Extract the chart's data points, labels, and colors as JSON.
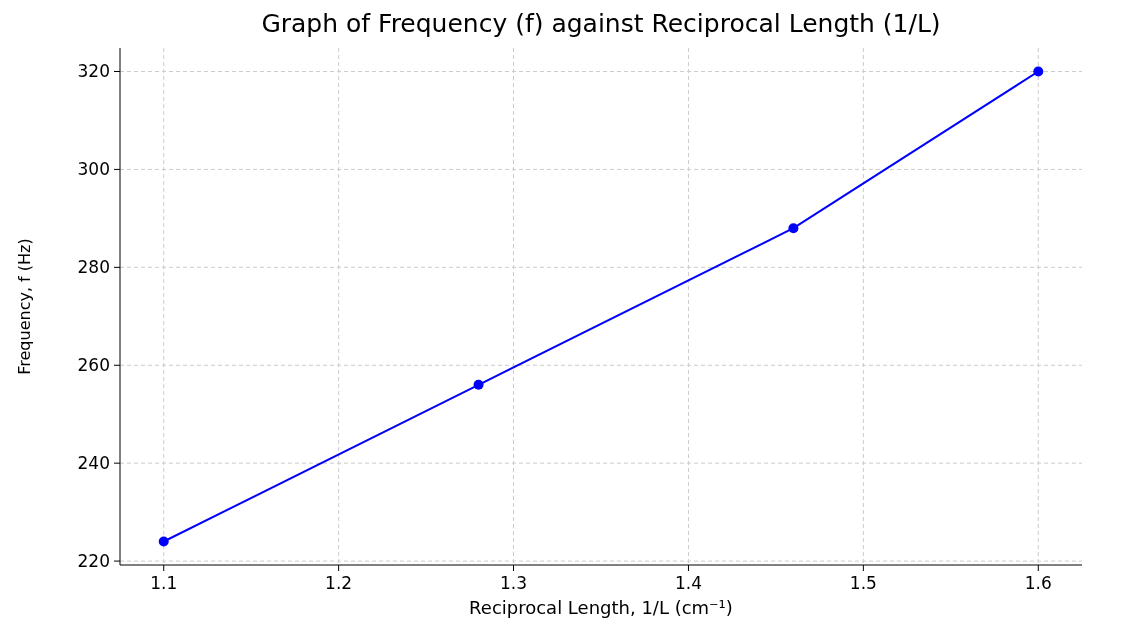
{
  "chart_data": {
    "type": "line",
    "title": "Graph of Frequency (f) against Reciprocal Length (1/L)",
    "xlabel": "Reciprocal Length, 1/L (cm⁻¹)",
    "ylabel": "Frequency, f (Hz)",
    "x": [
      1.1,
      1.28,
      1.46,
      1.6
    ],
    "series": [
      {
        "color": "#0000ff",
        "values": [
          224,
          256,
          288,
          320
        ]
      }
    ],
    "xlim": [
      1.075,
      1.625
    ],
    "xticks": [
      {
        "value": 1.1,
        "label": "1.1"
      },
      {
        "value": 1.2,
        "label": "1.2"
      },
      {
        "value": 1.3,
        "label": "1.3"
      },
      {
        "value": 1.4,
        "label": "1.4"
      },
      {
        "value": 1.5,
        "label": "1.5"
      },
      {
        "value": 1.6,
        "label": "1.6"
      }
    ],
    "ylim": [
      219.2,
      324.8
    ],
    "yticks": [
      220,
      240,
      260,
      280,
      300,
      320
    ],
    "grid": true,
    "marker": "circle",
    "line_style": "solid"
  }
}
